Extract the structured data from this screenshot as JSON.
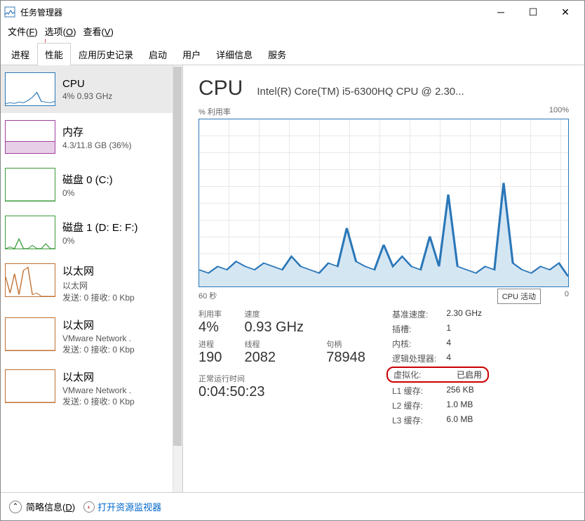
{
  "window": {
    "title": "任务管理器"
  },
  "menu": {
    "file": "文件(F)",
    "options": "选项(O)",
    "view": "查看(V)"
  },
  "tabs": [
    "进程",
    "性能",
    "应用历史记录",
    "启动",
    "用户",
    "详细信息",
    "服务"
  ],
  "active_tab": 1,
  "sidebar": [
    {
      "name": "CPU",
      "sub": "4% 0.93 GHz",
      "color": "#2a77b8",
      "points": [
        5,
        8,
        6,
        10,
        8,
        15,
        25,
        40,
        12,
        10,
        8,
        12
      ]
    },
    {
      "name": "内存",
      "sub": "4.3/11.8 GB (36%)",
      "color": "#a040a0",
      "fill": 36
    },
    {
      "name": "磁盘 0 (C:)",
      "sub": "0%",
      "color": "#3a9a3a",
      "points": [
        0,
        0,
        0,
        0,
        0,
        0,
        0,
        0,
        0,
        0,
        0,
        0
      ]
    },
    {
      "name": "磁盘 1 (D: E: F:)",
      "sub": "0%",
      "color": "#3a9a3a",
      "points": [
        0,
        5,
        0,
        30,
        0,
        0,
        10,
        0,
        0,
        15,
        0,
        0
      ]
    },
    {
      "name": "以太网",
      "sub": "以太网",
      "sub2": "发送: 0 接收: 0 Kbp",
      "color": "#c07030",
      "points": [
        60,
        10,
        70,
        5,
        80,
        90,
        5,
        10,
        0,
        0,
        0,
        0
      ]
    },
    {
      "name": "以太网",
      "sub": "VMware Network .",
      "sub2": "发送: 0 接收: 0 Kbp",
      "color": "#c07030",
      "points": [
        0,
        0,
        0,
        0,
        0,
        0,
        0,
        0,
        0,
        0,
        0,
        0
      ]
    },
    {
      "name": "以太网",
      "sub": "VMware Network .",
      "sub2": "发送: 0 接收: 0 Kbp",
      "color": "#c07030",
      "points": [
        0,
        0,
        0,
        0,
        0,
        0,
        0,
        0,
        0,
        0,
        0,
        0
      ]
    }
  ],
  "main": {
    "title": "CPU",
    "subtitle": "Intel(R) Core(TM) i5-6300HQ CPU @ 2.30...",
    "chart_top_left": "% 利用率",
    "chart_top_right": "100%",
    "chart_bottom_left": "60 秒",
    "chart_bottom_right": "0",
    "tooltip": "CPU 活动",
    "chart_color": "#2a77b8",
    "chart_fill": "#d5e6f3",
    "chart_points": [
      10,
      8,
      12,
      10,
      15,
      12,
      10,
      14,
      12,
      10,
      18,
      12,
      10,
      8,
      14,
      12,
      35,
      15,
      12,
      10,
      25,
      12,
      18,
      12,
      10,
      30,
      12,
      55,
      12,
      10,
      8,
      12,
      10,
      62,
      14,
      10,
      8,
      12,
      10,
      14,
      6
    ],
    "stats_left": [
      {
        "label": "利用率",
        "value": "4%"
      },
      {
        "label": "速度",
        "value": "0.93 GHz"
      },
      {
        "label": "",
        "value": ""
      },
      {
        "label": "进程",
        "value": "190"
      },
      {
        "label": "线程",
        "value": "2082"
      },
      {
        "label": "句柄",
        "value": "78948"
      }
    ],
    "uptime_label": "正常运行时间",
    "uptime_value": "0:04:50:23",
    "stats_right": [
      {
        "l": "基准速度:",
        "v": "2.30 GHz"
      },
      {
        "l": "插槽:",
        "v": "1"
      },
      {
        "l": "内核:",
        "v": "4"
      },
      {
        "l": "逻辑处理器:",
        "v": "4"
      },
      {
        "l": "虚拟化:",
        "v": "已启用",
        "highlight": true
      },
      {
        "l": "L1 缓存:",
        "v": "256 KB"
      },
      {
        "l": "L2 缓存:",
        "v": "1.0 MB"
      },
      {
        "l": "L3 缓存:",
        "v": "6.0 MB"
      }
    ]
  },
  "footer": {
    "collapse": "简略信息(D)",
    "link": "打开资源监视器"
  }
}
